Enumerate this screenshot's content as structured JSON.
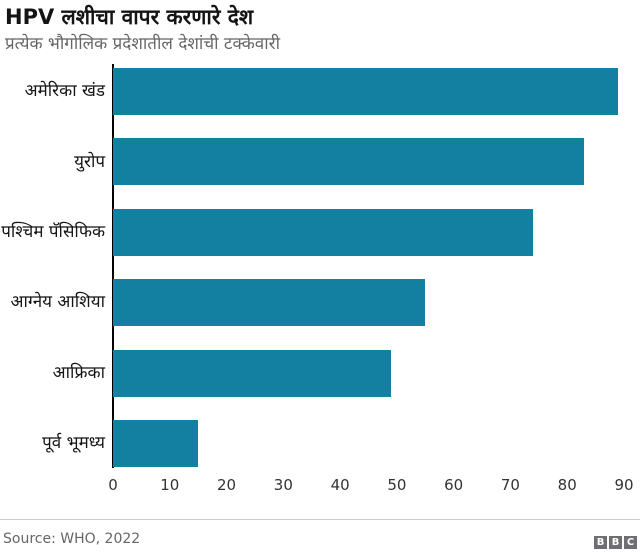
{
  "header": {
    "title": "HPV लशीचा वापर करणारे देश",
    "subtitle": "प्रत्येक भौगोलिक प्रदेशातील देशांची टक्केवारी"
  },
  "chart_data": {
    "type": "bar",
    "orientation": "horizontal",
    "title": "HPV लशीचा वापर करणारे देश",
    "subtitle": "प्रत्येक भौगोलिक प्रदेशातील देशांची टक्केवारी",
    "categories": [
      "अमेरिका खंड",
      "युरोप",
      "पश्चिम पॅसिफिक",
      "आग्नेय आशिया",
      "आफ्रिका",
      "पूर्व भूमध्य"
    ],
    "values": [
      89,
      83,
      74,
      55,
      49,
      15
    ],
    "xlabel": "",
    "ylabel": "",
    "xlim": [
      0,
      90
    ],
    "x_ticks": [
      0,
      10,
      20,
      30,
      40,
      50,
      60,
      70,
      80,
      90
    ],
    "grid": false,
    "legend": false,
    "bar_color": "#1380A1"
  },
  "footer": {
    "source": "Source: WHO, 2022",
    "logo_letters": [
      "B",
      "B",
      "C"
    ]
  },
  "colors": {
    "bar": "#1380A1",
    "axis": "#000000",
    "title_text": "#141414",
    "subtitle_text": "#666666",
    "tick_text": "#333333",
    "divider": "#cccccc",
    "logo_bg": "#6e6e73"
  }
}
